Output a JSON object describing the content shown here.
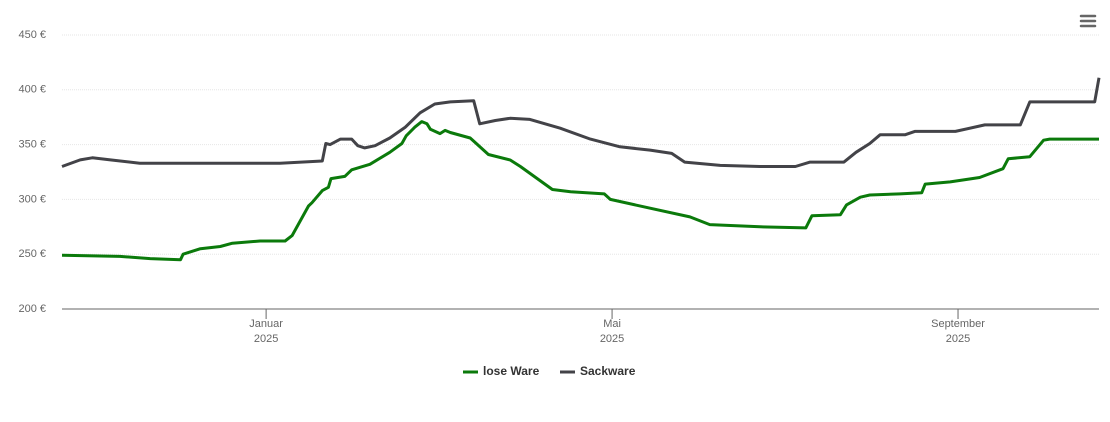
{
  "chart_data": {
    "type": "line",
    "x": [
      -1.36,
      -0.69,
      -0.34,
      0.01,
      0.04,
      0.24,
      0.47,
      0.61,
      0.93,
      1.22,
      1.3,
      1.49,
      1.53,
      1.65,
      1.72,
      1.75,
      1.91,
      1.99,
      2.2,
      2.43,
      2.57,
      2.62,
      2.72,
      2.8,
      2.86,
      2.9,
      3.01,
      3.07,
      3.13,
      3.36,
      3.43,
      3.57,
      3.82,
      3.94,
      4.31,
      4.52,
      4.91,
      4.98,
      5.44,
      5.9,
      6.13,
      6.71,
      7.24,
      7.31,
      7.64,
      7.71,
      7.87,
      7.98,
      8.33,
      8.58,
      8.62,
      8.91,
      9.25,
      9.52,
      9.58,
      9.83,
      9.99,
      10.06,
      10.63
    ],
    "series": [
      {
        "name": "lose Ware",
        "color": "#0b7a0b",
        "values": [
          249,
          248,
          246,
          245,
          250,
          255,
          257,
          260,
          262,
          262,
          267,
          294,
          297,
          308,
          311,
          319,
          321,
          327,
          332,
          343,
          351,
          358,
          366,
          371,
          369,
          364,
          360,
          363,
          361,
          356,
          351,
          341,
          336,
          330,
          309,
          307,
          305,
          300,
          292,
          284,
          277,
          275,
          274,
          285,
          286,
          295,
          302,
          304,
          305,
          306,
          314,
          316,
          320,
          328,
          337,
          339,
          354,
          355,
          355
        ]
      },
      {
        "name": "Sackware",
        "color": "#434348",
        "x": [
          -1.36,
          -1.15,
          -1.01,
          -0.8,
          -0.46,
          0.24,
          1.16,
          1.65,
          1.69,
          1.74,
          1.86,
          1.99,
          2.06,
          2.14,
          2.26,
          2.43,
          2.61,
          2.78,
          2.95,
          3.13,
          3.4,
          3.47,
          3.65,
          3.82,
          4.05,
          4.4,
          4.75,
          5.09,
          5.44,
          5.69,
          5.84,
          6.25,
          6.71,
          7.12,
          7.29,
          7.68,
          7.82,
          7.98,
          8.1,
          8.39,
          8.5,
          8.97,
          9.31,
          9.72,
          9.83,
          10.58,
          10.63
        ],
        "values": [
          330,
          336,
          338,
          336,
          333,
          333,
          333,
          335,
          351,
          350,
          355,
          355,
          349,
          347,
          349,
          356,
          366,
          379,
          387,
          389,
          390,
          369,
          372,
          374,
          373,
          365,
          355,
          348,
          345,
          342,
          334,
          331,
          330,
          330,
          334,
          334,
          343,
          351,
          359,
          359,
          362,
          362,
          368,
          368,
          389,
          389,
          411
        ]
      }
    ],
    "xlim": [
      -1.36,
      10.63
    ],
    "xticks": [
      {
        "value": 1,
        "label": "Januar\n2025"
      },
      {
        "value": 5,
        "label": "Mai\n2025"
      },
      {
        "value": 9,
        "label": "September\n2025"
      }
    ],
    "ylim": [
      200,
      450
    ],
    "yticks": [
      {
        "value": 200,
        "label": "200 €"
      },
      {
        "value": 250,
        "label": "250 €"
      },
      {
        "value": 300,
        "label": "300 €"
      },
      {
        "value": 350,
        "label": "350 €"
      },
      {
        "value": 400,
        "label": "400 €"
      },
      {
        "value": 450,
        "label": "450 €"
      }
    ],
    "grid": true,
    "legend": "bottom"
  }
}
